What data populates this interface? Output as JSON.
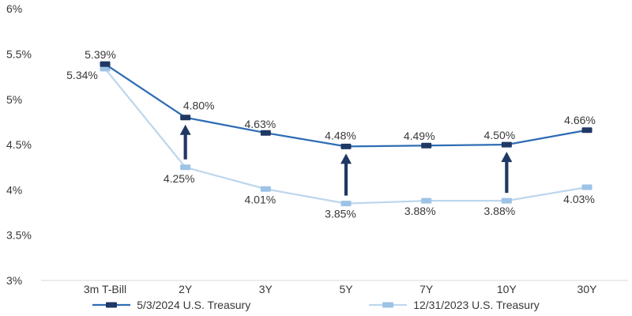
{
  "chart_data": {
    "type": "line",
    "title": "",
    "xlabel": "",
    "ylabel": "",
    "categories": [
      "3m T-Bill",
      "2Y",
      "3Y",
      "5Y",
      "7Y",
      "10Y",
      "30Y"
    ],
    "series": [
      {
        "name": "5/3/2024 U.S. Treasury",
        "values": [
          5.39,
          4.8,
          4.63,
          4.48,
          4.49,
          4.5,
          4.66
        ],
        "data_labels": [
          "5.39%",
          "4.80%",
          "4.63%",
          "4.48%",
          "4.49%",
          "4.50%",
          "4.66%"
        ],
        "line_color": "#2E6DB4",
        "marker_color": "#1F3864",
        "label_side": "above",
        "label_offsets": [
          [
            -6,
            -12
          ],
          [
            17,
            -15
          ],
          [
            -7,
            -11
          ],
          [
            -7,
            -14
          ],
          [
            -9,
            -12
          ],
          [
            -9,
            -12
          ],
          [
            -9,
            -13
          ]
        ]
      },
      {
        "name": "12/31/2023 U.S. Treasury",
        "values": [
          5.34,
          4.25,
          4.01,
          3.85,
          3.88,
          3.88,
          4.03
        ],
        "data_labels": [
          "5.34%",
          "4.25%",
          "4.01%",
          "3.85%",
          "3.88%",
          "3.88%",
          "4.03%"
        ],
        "line_color": "#BDD7EE",
        "marker_color": "#9DC3E6",
        "label_side": "below",
        "label_offsets": [
          [
            -29,
            8
          ],
          [
            -8,
            14
          ],
          [
            -7,
            13
          ],
          [
            -7,
            13
          ],
          [
            -8,
            13
          ],
          [
            -9,
            13
          ],
          [
            -10,
            15
          ]
        ]
      }
    ],
    "y_axis": {
      "min": 3,
      "max": 6,
      "step": 0.5,
      "tick_labels": [
        "6%",
        "5.5%",
        "5%",
        "4.5%",
        "4%",
        "3.5%",
        "3%"
      ]
    },
    "arrows": {
      "indices": [
        1,
        3,
        5
      ],
      "direction": "up",
      "color": "#1F3864"
    },
    "grid": false,
    "legend_position": "bottom",
    "axis_color": "#D9D9D9",
    "text_color": "#383838",
    "background": "#FFFFFF"
  }
}
